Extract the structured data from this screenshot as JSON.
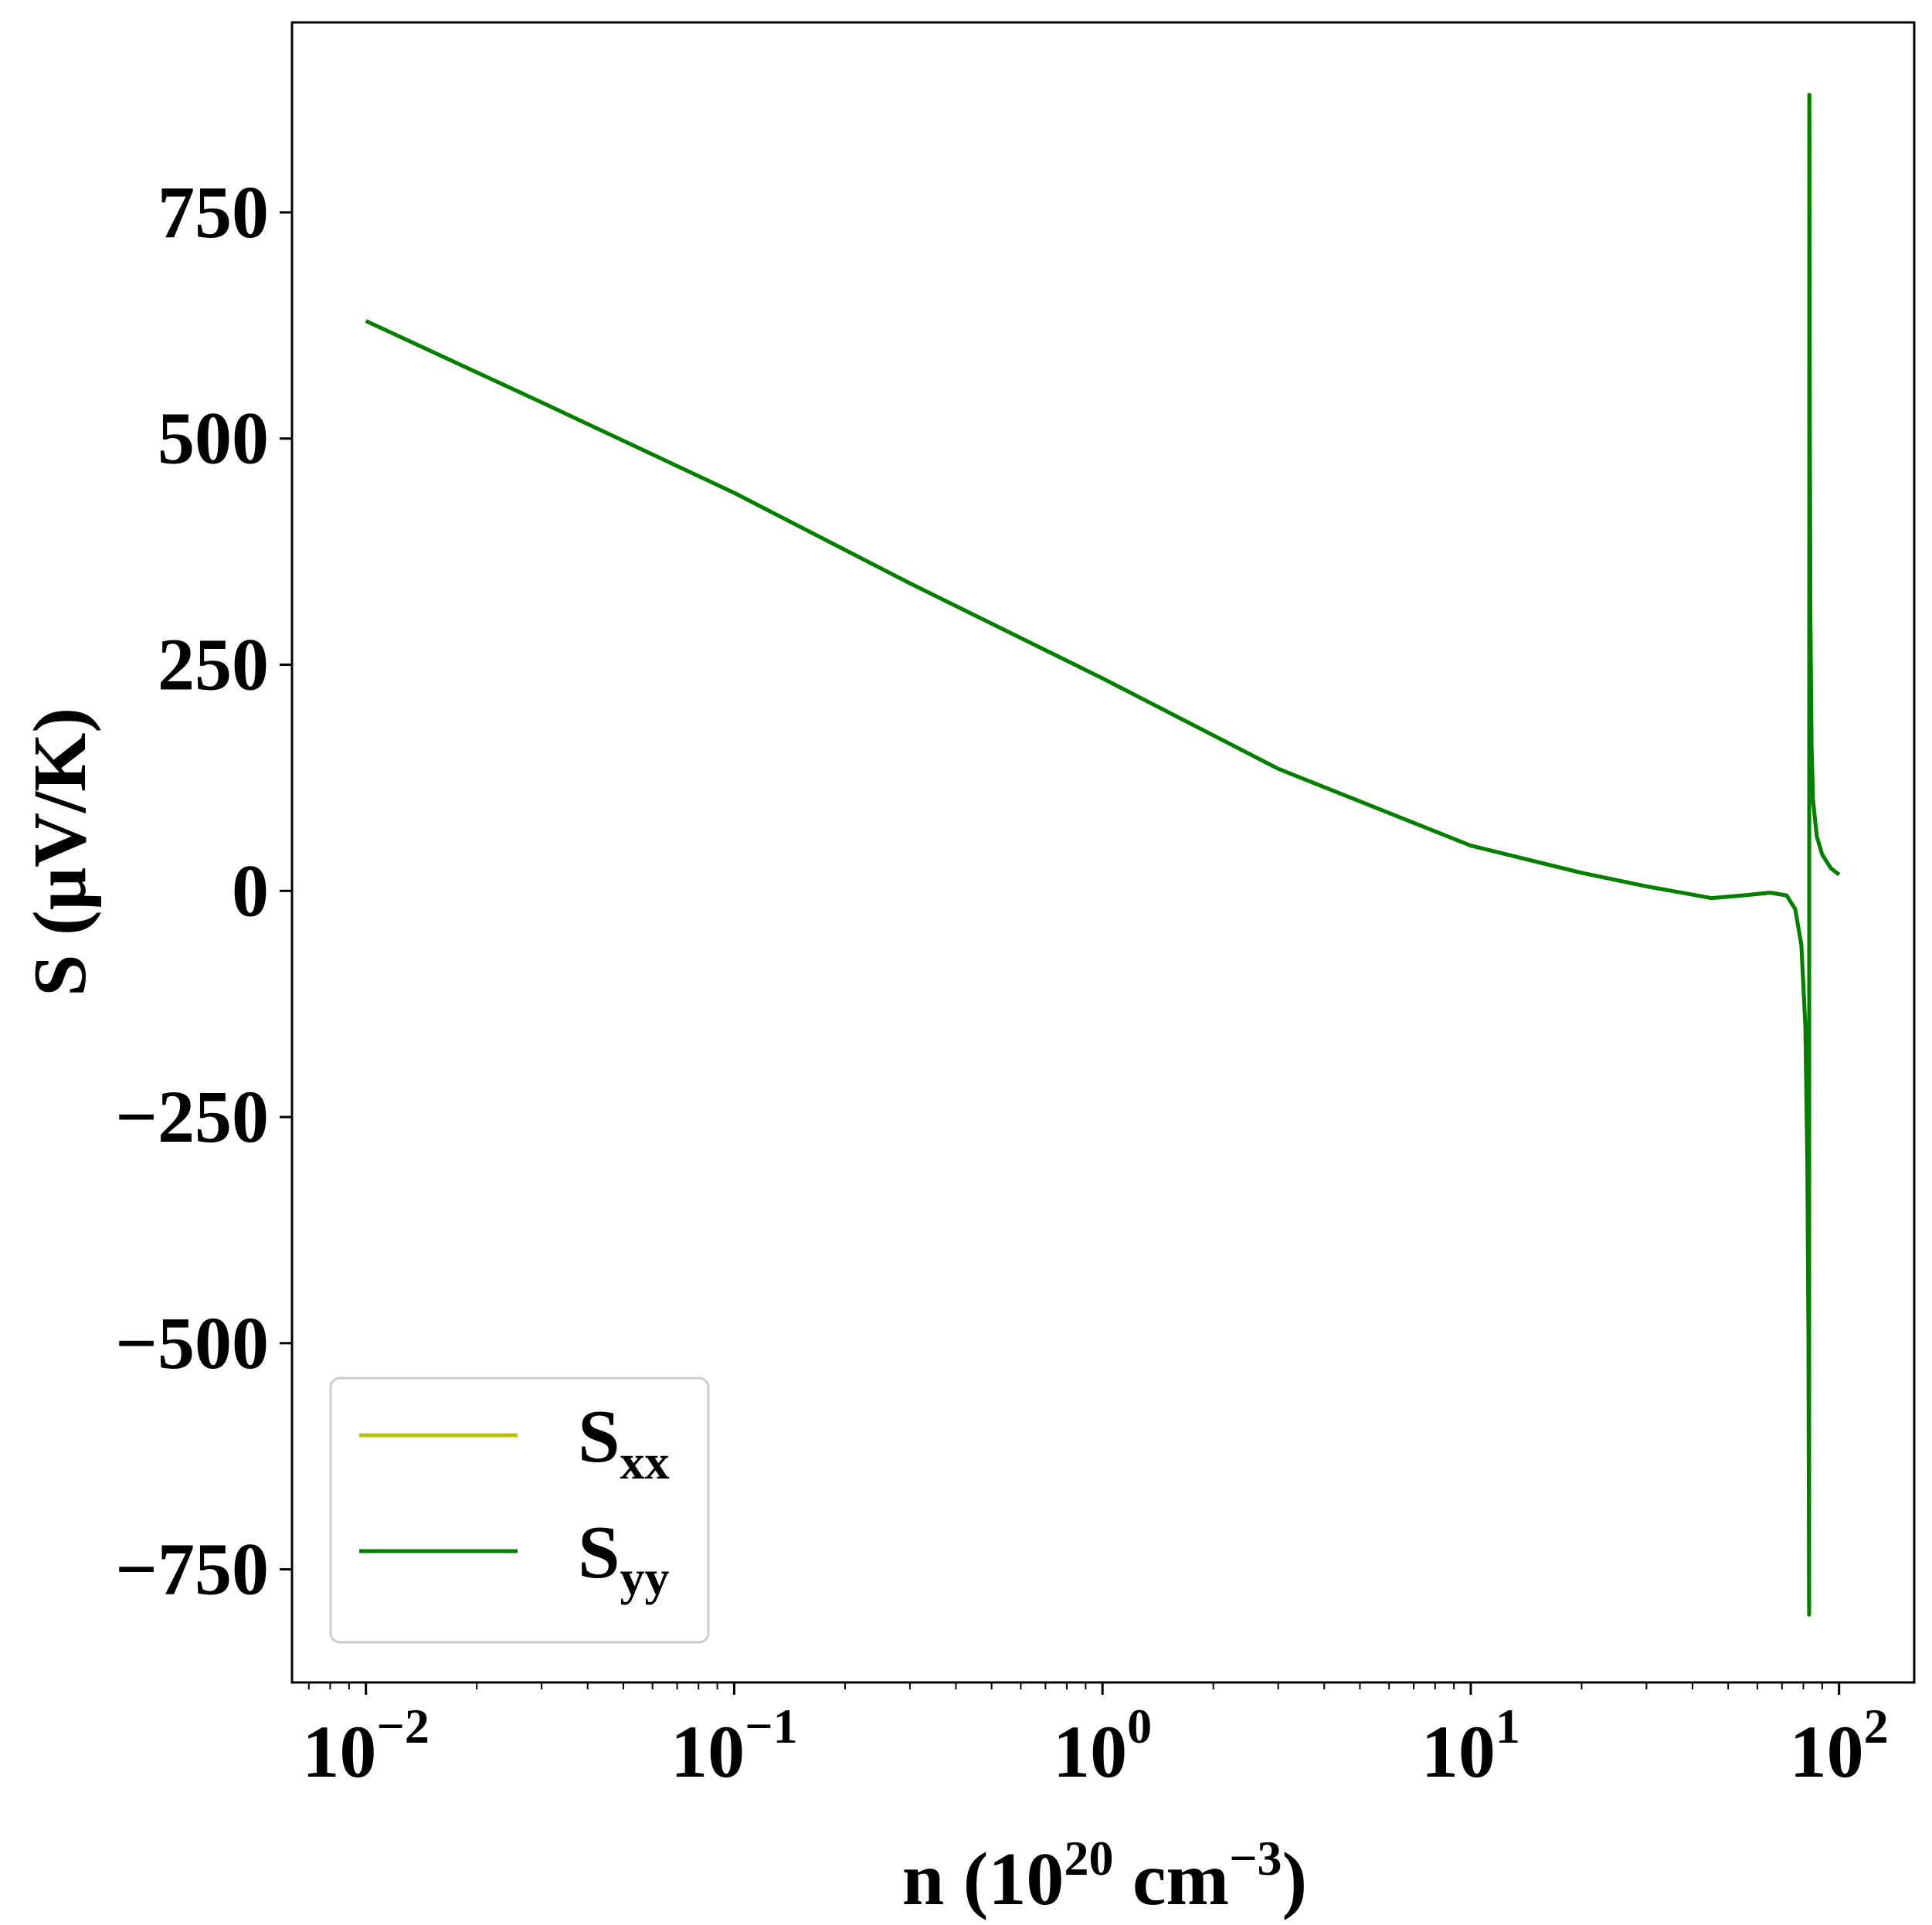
{
  "chart_data": {
    "type": "line",
    "title": "",
    "xlabel": {
      "base": "n (10",
      "sup1": "20",
      "mid": " cm",
      "sup2": "−3",
      "end": ")"
    },
    "ylabel": "S (μV/K)",
    "x_scale": "log",
    "xlim": [
      0.0063,
      160
    ],
    "ylim": [
      -875,
      960
    ],
    "x_ticks": [
      {
        "value": 0.01,
        "base": "10",
        "exp": "−2"
      },
      {
        "value": 0.1,
        "base": "10",
        "exp": "−1"
      },
      {
        "value": 1,
        "base": "10",
        "exp": "0"
      },
      {
        "value": 10,
        "base": "10",
        "exp": "1"
      },
      {
        "value": 100,
        "base": "10",
        "exp": "2"
      }
    ],
    "y_ticks": [
      {
        "value": 750,
        "label": "750"
      },
      {
        "value": 500,
        "label": "500"
      },
      {
        "value": 250,
        "label": "250"
      },
      {
        "value": 0,
        "label": "0"
      },
      {
        "value": -250,
        "label": "−250"
      },
      {
        "value": -500,
        "label": "−500"
      },
      {
        "value": -750,
        "label": "−750"
      }
    ],
    "grid": false,
    "legend_position": "bottom-left",
    "series": [
      {
        "name": {
          "base": "S",
          "sub": "xx"
        },
        "color": "#bfbf00",
        "x": [
          0.01,
          0.03,
          0.1,
          0.3,
          1,
          3,
          10,
          20,
          30,
          45,
          55,
          65,
          72,
          76,
          79,
          81,
          82,
          82.6,
          82.9,
          83.05,
          83.15,
          83.3,
          83.6,
          84.2,
          85,
          87,
          90,
          95,
          100
        ],
        "y": [
          630,
          540,
          440,
          340,
          235,
          135,
          50,
          20,
          5,
          -8,
          -5,
          -2,
          -5,
          -20,
          -60,
          -150,
          -300,
          -500,
          -800,
          880,
          700,
          500,
          300,
          160,
          100,
          60,
          40,
          25,
          18
        ]
      },
      {
        "name": {
          "base": "S",
          "sub": "yy"
        },
        "color": "#007f00",
        "x": [
          0.01,
          0.03,
          0.1,
          0.3,
          1,
          3,
          10,
          20,
          30,
          45,
          55,
          65,
          72,
          76,
          79,
          81,
          82,
          82.6,
          82.9,
          83.05,
          83.15,
          83.3,
          83.6,
          84.2,
          85,
          87,
          90,
          95,
          100
        ],
        "y": [
          630,
          540,
          440,
          340,
          235,
          135,
          50,
          20,
          5,
          -8,
          -5,
          -2,
          -5,
          -20,
          -60,
          -150,
          -300,
          -500,
          -800,
          880,
          700,
          500,
          300,
          160,
          100,
          60,
          40,
          25,
          18
        ]
      }
    ]
  }
}
